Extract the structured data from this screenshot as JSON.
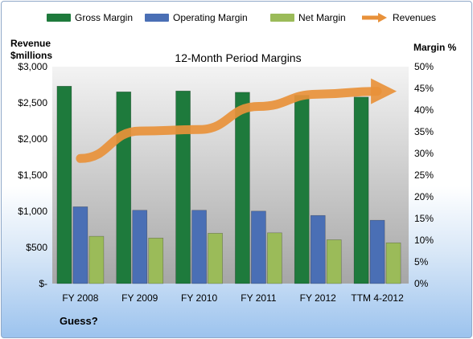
{
  "chart_data": {
    "type": "bar",
    "title": "12-Month Period Margins",
    "categories": [
      "FY 2008",
      "FY 2009",
      "FY 2010",
      "FY 2011",
      "FY 2012",
      "TTM 4-2012"
    ],
    "series": [
      {
        "name": "Gross Margin",
        "axis": "right",
        "color": "#1e7a3c",
        "values": [
          45.5,
          44.2,
          44.4,
          44.1,
          43.4,
          43.0
        ]
      },
      {
        "name": "Operating Margin",
        "axis": "right",
        "color": "#4a6fb5",
        "values": [
          17.7,
          16.9,
          16.9,
          16.7,
          15.7,
          14.6
        ]
      },
      {
        "name": "Net Margin",
        "axis": "right",
        "color": "#9bbb59",
        "values": [
          10.9,
          10.5,
          11.6,
          11.7,
          10.1,
          9.4
        ]
      },
      {
        "name": "Revenues",
        "axis": "left",
        "type": "line",
        "color": "#e8913a",
        "values": [
          1730,
          2110,
          2130,
          2450,
          2620,
          2660
        ]
      }
    ],
    "y_left": {
      "label_line1": "Revenue",
      "label_line2": "$millions",
      "range": [
        0,
        3000
      ],
      "ticks": [
        "$-",
        "$500",
        "$1,000",
        "$1,500",
        "$2,000",
        "$2,500",
        "$3,000"
      ]
    },
    "y_right": {
      "label": "Margin %",
      "range": [
        0,
        50
      ],
      "ticks": [
        "0%",
        "5%",
        "10%",
        "15%",
        "20%",
        "25%",
        "30%",
        "35%",
        "40%",
        "45%",
        "50%"
      ]
    },
    "grid": false,
    "legend_position": "top"
  },
  "footer_note": "Guess?"
}
